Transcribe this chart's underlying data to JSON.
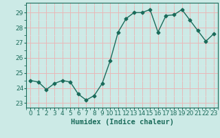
{
  "x": [
    0,
    1,
    2,
    3,
    4,
    5,
    6,
    7,
    8,
    9,
    10,
    11,
    12,
    13,
    14,
    15,
    16,
    17,
    18,
    19,
    20,
    21,
    22,
    23
  ],
  "y": [
    24.5,
    24.4,
    23.9,
    24.3,
    24.5,
    24.4,
    23.6,
    23.2,
    23.5,
    24.3,
    25.8,
    27.7,
    28.6,
    29.0,
    29.0,
    29.2,
    27.7,
    28.8,
    28.85,
    29.2,
    28.5,
    27.8,
    27.1,
    27.6
  ],
  "title": "",
  "xlabel": "Humidex (Indice chaleur)",
  "ylabel": "",
  "ylim": [
    22.7,
    29.65
  ],
  "xlim": [
    -0.5,
    23.5
  ],
  "yticks": [
    23,
    24,
    25,
    26,
    27,
    28,
    29
  ],
  "xticks": [
    0,
    1,
    2,
    3,
    4,
    5,
    6,
    7,
    8,
    9,
    10,
    11,
    12,
    13,
    14,
    15,
    16,
    17,
    18,
    19,
    20,
    21,
    22,
    23
  ],
  "line_color": "#1a6b5a",
  "bg_plot": "#cceae6",
  "bg_figure": "#cceae6",
  "grid_major_color": "#e8b8b8",
  "grid_minor_color": "#d8e8e6",
  "marker": "D",
  "marker_size": 2.5,
  "line_width": 1.0,
  "xlabel_fontsize": 7.5,
  "tick_fontsize": 6.5
}
